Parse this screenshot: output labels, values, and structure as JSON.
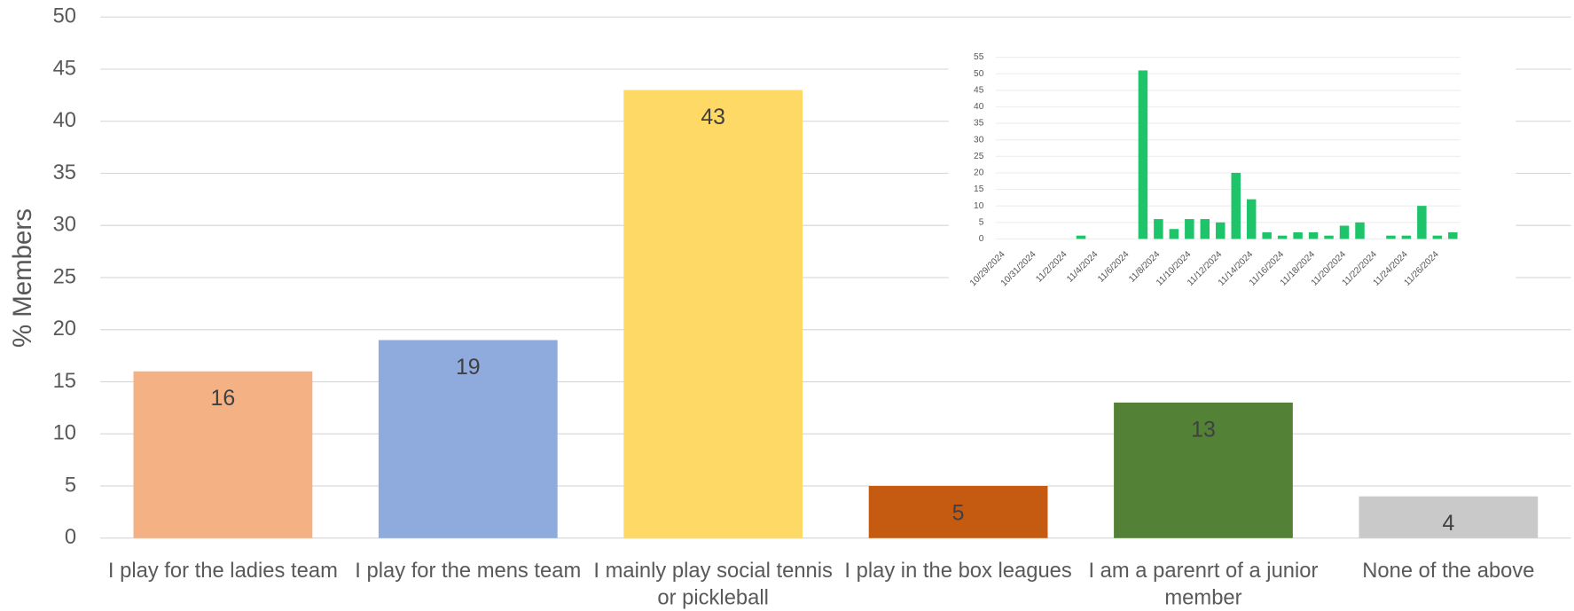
{
  "chart_data": [
    {
      "type": "bar",
      "y_label": "% Members",
      "categories": [
        "I play for the ladies team",
        "I play for the mens team",
        "I mainly play social tennis or pickleball",
        "I play in the box leagues",
        "I am a parenrt of a junior member",
        "None of the above"
      ],
      "values": [
        16,
        19,
        43,
        5,
        13,
        4
      ],
      "colors": [
        "#f4b183",
        "#8faadc",
        "#ffd966",
        "#c55a11",
        "#538135",
        "#c9c9c9"
      ],
      "ylim": [
        0,
        50
      ],
      "yticks": [
        0,
        5,
        10,
        15,
        20,
        25,
        30,
        35,
        40,
        45,
        50
      ],
      "grid": true
    },
    {
      "type": "bar",
      "categories": [
        "10/29/2024",
        null,
        "10/31/2024",
        null,
        "11/2/2024",
        null,
        "11/4/2024",
        null,
        "11/6/2024",
        null,
        "11/8/2024",
        null,
        "11/10/2024",
        null,
        "11/12/2024",
        null,
        "11/14/2024",
        null,
        "11/16/2024",
        null,
        "11/18/2024",
        null,
        "11/20/2024",
        null,
        "11/22/2024",
        null,
        "11/24/2024",
        null,
        "11/26/2024",
        null
      ],
      "values": [
        0,
        0,
        0,
        0,
        0,
        1,
        0,
        0,
        0,
        51,
        6,
        3,
        6,
        6,
        5,
        20,
        12,
        2,
        1,
        2,
        2,
        1,
        4,
        5,
        0,
        1,
        1,
        10,
        1,
        2
      ],
      "color": "#1dc46a",
      "ylim": [
        0,
        55
      ],
      "yticks": [
        0,
        5,
        10,
        15,
        20,
        25,
        30,
        35,
        40,
        45,
        50,
        55
      ],
      "grid": true
    }
  ]
}
